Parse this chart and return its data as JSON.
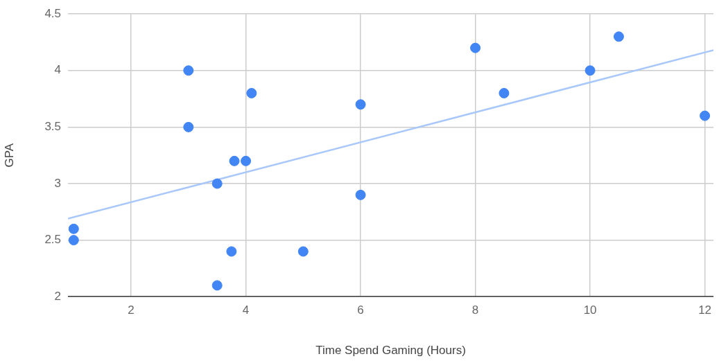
{
  "chart_data": {
    "type": "scatter",
    "xlabel": "Time Spend Gaming (Hours)",
    "ylabel": "GPA",
    "xlim": [
      0.9,
      12.15
    ],
    "xticks": [
      2,
      4,
      6,
      8,
      10,
      12
    ],
    "ylim": [
      2,
      4.5
    ],
    "yticks": [
      2,
      2.5,
      3,
      3.5,
      4,
      4.5
    ],
    "grid": true,
    "legend": false,
    "marker": "circle",
    "series": [
      {
        "color": "#4285f4",
        "x": [
          1,
          1,
          3,
          3,
          3.5,
          3.5,
          3.75,
          3.8,
          4,
          4.1,
          5,
          6,
          6,
          8,
          8.5,
          10,
          10.5,
          12
        ],
        "values": [
          2.6,
          2.5,
          4,
          3.5,
          3,
          2.1,
          2.4,
          3.2,
          3.2,
          3.8,
          2.4,
          3.7,
          2.9,
          4.2,
          3.8,
          4,
          4.3,
          3.6
        ]
      },
      {
        "type": "line",
        "color": "#a8c7fa",
        "x": [
          0.9,
          12.15
        ],
        "values": [
          2.69,
          4.18
        ],
        "marker": "none"
      }
    ]
  }
}
